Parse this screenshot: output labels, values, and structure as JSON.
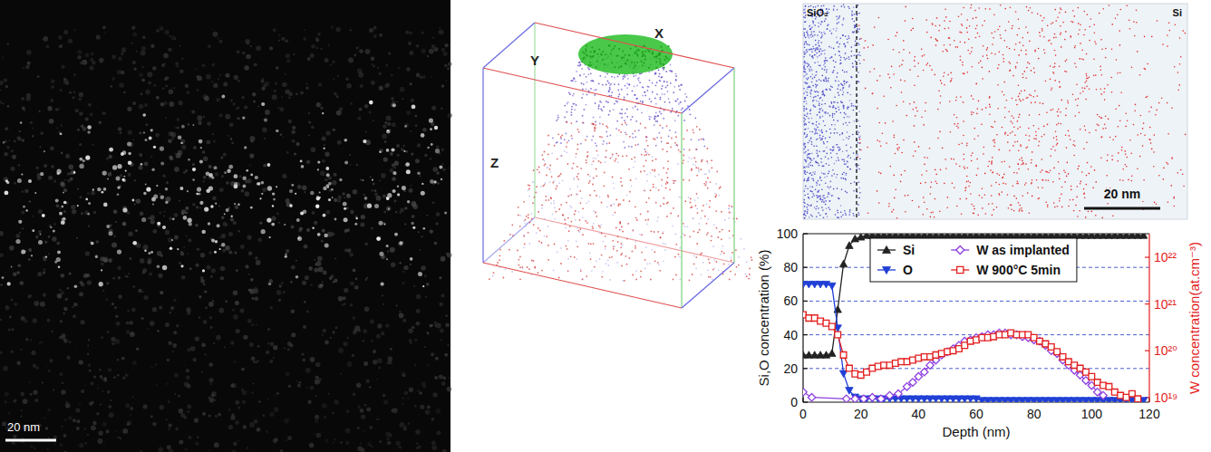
{
  "panels": {
    "tem": {
      "scale_bar": "20 nm"
    },
    "reconstruction": {
      "axes": [
        "X",
        "Y",
        "Z"
      ]
    },
    "slice": {
      "labels": [
        "SiO₂",
        "Si"
      ],
      "scale_bar": "20 nm"
    }
  },
  "chart_data": {
    "type": "line",
    "x_label": "Depth (nm)",
    "y_label": "Si,O concentration (%)",
    "y2_label": "W concentration(at.cm⁻³)",
    "xlim": [
      0,
      120
    ],
    "xticks": [
      0,
      20,
      40,
      60,
      80,
      100,
      120
    ],
    "ylim": [
      0,
      100
    ],
    "yticks": [
      0,
      20,
      40,
      60,
      80,
      100
    ],
    "y2lim": [
      7.9e+18,
      3.2e+22
    ],
    "y2ticks": [
      {
        "value": 1e+19,
        "label": "10¹⁹"
      },
      {
        "value": 1e+20,
        "label": "10²⁰"
      },
      {
        "value": 1e+21,
        "label": "10²¹"
      },
      {
        "value": 1e+22,
        "label": "10²²"
      }
    ],
    "log": "y2",
    "grid": true,
    "legend": "top",
    "series": [
      {
        "name": "Si",
        "color": "#222222",
        "marker": "triangle",
        "line_style": "solid",
        "x": [
          0,
          2,
          4,
          6,
          8,
          10,
          12,
          14,
          16,
          18,
          20,
          22,
          24,
          26,
          28,
          30,
          32,
          34,
          36,
          38,
          40,
          42,
          44,
          46,
          48,
          50,
          52,
          54,
          56,
          58,
          60,
          62,
          64,
          66,
          68,
          70,
          72,
          74,
          76,
          78,
          80,
          82,
          84,
          86,
          88,
          90,
          92,
          94,
          96,
          98,
          100,
          102,
          104,
          106,
          108,
          110,
          112,
          114,
          116,
          118
        ],
        "values": [
          28,
          28,
          28,
          28,
          28,
          29,
          55,
          82,
          93,
          97,
          98,
          99,
          99,
          99,
          99,
          99,
          99,
          99,
          99,
          99,
          99,
          99,
          99,
          99,
          99,
          99,
          99,
          99,
          99,
          99,
          99,
          99,
          99,
          99,
          99,
          99,
          99,
          99,
          99,
          99,
          99,
          99,
          99,
          99,
          99,
          99,
          99,
          99,
          99,
          99,
          99,
          99,
          99,
          99,
          99,
          99,
          99,
          99,
          99,
          99
        ]
      },
      {
        "name": "O",
        "color": "#1f3fd6",
        "marker": "triangle-down",
        "line_style": "solid",
        "x": [
          0,
          2,
          4,
          6,
          8,
          10,
          12,
          14,
          16,
          18,
          20,
          22,
          24,
          26,
          28,
          30,
          32,
          34,
          36,
          38,
          40,
          42,
          44,
          46,
          48,
          50,
          52,
          54,
          56,
          58,
          60,
          62,
          64,
          66,
          68,
          70,
          72,
          74,
          76,
          78,
          80,
          82,
          84,
          86,
          88,
          90,
          92,
          94,
          96,
          98,
          100,
          102,
          104,
          106,
          108,
          110,
          112,
          114,
          116,
          118
        ],
        "values": [
          70,
          70,
          70,
          70,
          70,
          69,
          44,
          17,
          7,
          3,
          2,
          2,
          2,
          2,
          2,
          2,
          2,
          2,
          2,
          2,
          2,
          2,
          2,
          2,
          2,
          2,
          2,
          2,
          2,
          2,
          2,
          1,
          1,
          1,
          1,
          1,
          1,
          1,
          1,
          1,
          1,
          1,
          1,
          1,
          1,
          1,
          1,
          1,
          1,
          1,
          1,
          1,
          1,
          1,
          1,
          1,
          1,
          1,
          1,
          1
        ]
      },
      {
        "name": "W as implanted",
        "color": "#8e3fe0",
        "marker": "diamond-open",
        "line_style": "solid",
        "axis": "y2",
        "x": [
          0,
          3,
          15,
          18,
          21,
          24,
          27,
          30,
          33,
          36,
          38,
          40,
          42,
          44,
          46,
          48,
          50,
          52,
          54,
          56,
          58,
          60,
          62,
          64,
          66,
          68,
          70,
          72,
          74,
          76,
          78,
          80,
          82,
          84,
          86,
          88,
          90,
          92,
          94,
          96,
          98,
          100,
          102,
          104
        ],
        "values": [
          1.3e+19,
          1e+19,
          9.3e+18,
          9.3e+18,
          9.3e+18,
          1e+19,
          9.3e+18,
          1.1e+19,
          1.2e+19,
          1.7e+19,
          2.1e+19,
          2.8e+19,
          3.5e+19,
          4.9e+19,
          6.3e+19,
          8.1e+19,
          9.5e+19,
          1.1e+20,
          1.3e+20,
          1.6e+20,
          1.7e+20,
          1.9e+20,
          2e+20,
          2.2e+20,
          2.2e+20,
          2.4e+20,
          2.4e+20,
          2.2e+20,
          2.2e+20,
          2e+20,
          1.9e+20,
          1.7e+20,
          1.6e+20,
          1.3e+20,
          1e+20,
          8.7e+19,
          6.3e+19,
          4.9e+19,
          3.8e+19,
          3e+19,
          2.3e+19,
          1.8e+19,
          1.3e+19,
          1.1e+19
        ]
      },
      {
        "name": "W 900°C 5min",
        "color": "#e31e1e",
        "marker": "square-open",
        "line_style": "solid",
        "axis": "y2",
        "x": [
          0,
          2,
          4,
          6,
          8,
          10,
          12,
          14,
          16,
          18,
          20,
          22,
          24,
          26,
          28,
          30,
          32,
          34,
          36,
          38,
          40,
          42,
          44,
          46,
          48,
          50,
          52,
          54,
          56,
          58,
          60,
          62,
          64,
          66,
          68,
          70,
          72,
          74,
          76,
          78,
          80,
          82,
          84,
          86,
          88,
          90,
          92,
          94,
          96,
          98,
          100,
          102,
          104,
          106,
          108,
          110,
          112,
          114,
          116
        ],
        "values": [
          5.9e+20,
          5e+20,
          5e+20,
          4.3e+20,
          3.9e+20,
          3.3e+20,
          2.2e+20,
          8.1e+19,
          4.2e+19,
          3.2e+19,
          3e+19,
          3.5e+19,
          4.2e+19,
          4.6e+19,
          4.9e+19,
          4.9e+19,
          5.4e+19,
          5.8e+19,
          5.8e+19,
          6.3e+19,
          6.9e+19,
          7.4e+19,
          7.4e+19,
          8.1e+19,
          8.7e+19,
          9.5e+19,
          1e+20,
          1.1e+20,
          1.3e+20,
          1.6e+20,
          1.7e+20,
          1.9e+20,
          1.9e+20,
          2e+20,
          2.2e+20,
          2.2e+20,
          2.4e+20,
          2.2e+20,
          2.2e+20,
          2.2e+20,
          1.9e+20,
          1.6e+20,
          1.4e+20,
          1.2e+20,
          9.5e+19,
          7.4e+19,
          5.8e+19,
          4.9e+19,
          4.2e+19,
          3.5e+19,
          2.8e+19,
          2.1e+19,
          1.8e+19,
          1.7e+19,
          1.3e+19,
          1.1e+19,
          1e+19,
          1.2e+19,
          9.3e+18
        ]
      }
    ]
  }
}
